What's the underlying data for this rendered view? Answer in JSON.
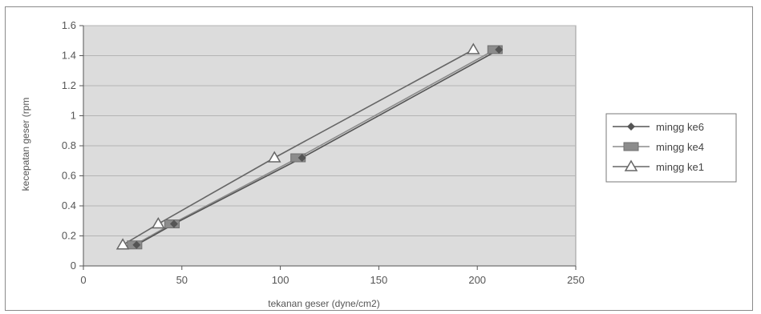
{
  "chart_data": {
    "type": "line",
    "title": "",
    "xlabel": "tekanan geser (dyne/cm2)",
    "ylabel": "kecepatan geser (rpm",
    "xlim": [
      0,
      250
    ],
    "ylim": [
      0,
      1.6
    ],
    "xticks": [
      "0",
      "50",
      "100",
      "150",
      "200",
      "250"
    ],
    "yticks": [
      "0",
      "0.2",
      "0.4",
      "0.6",
      "0.8",
      "1",
      "1.2",
      "1.4",
      "1.6"
    ],
    "grid": "horizontal",
    "legend_position": "right",
    "series": [
      {
        "name": "mingg ke6",
        "marker": "diamond",
        "color": "#555555",
        "x": [
          27,
          46,
          111,
          211
        ],
        "y": [
          0.14,
          0.28,
          0.72,
          1.44
        ]
      },
      {
        "name": "mingg ke4",
        "marker": "square",
        "color": "#8c8c8c",
        "x": [
          26,
          45,
          109,
          209
        ],
        "y": [
          0.14,
          0.28,
          0.72,
          1.44
        ]
      },
      {
        "name": "mingg ke1",
        "marker": "triangle",
        "color": "#666666",
        "x": [
          20,
          38,
          97,
          198
        ],
        "y": [
          0.14,
          0.28,
          0.72,
          1.44
        ]
      }
    ]
  },
  "colors": {
    "plot_background": "#dcdcdc",
    "gridline": "#b4b4b4"
  }
}
